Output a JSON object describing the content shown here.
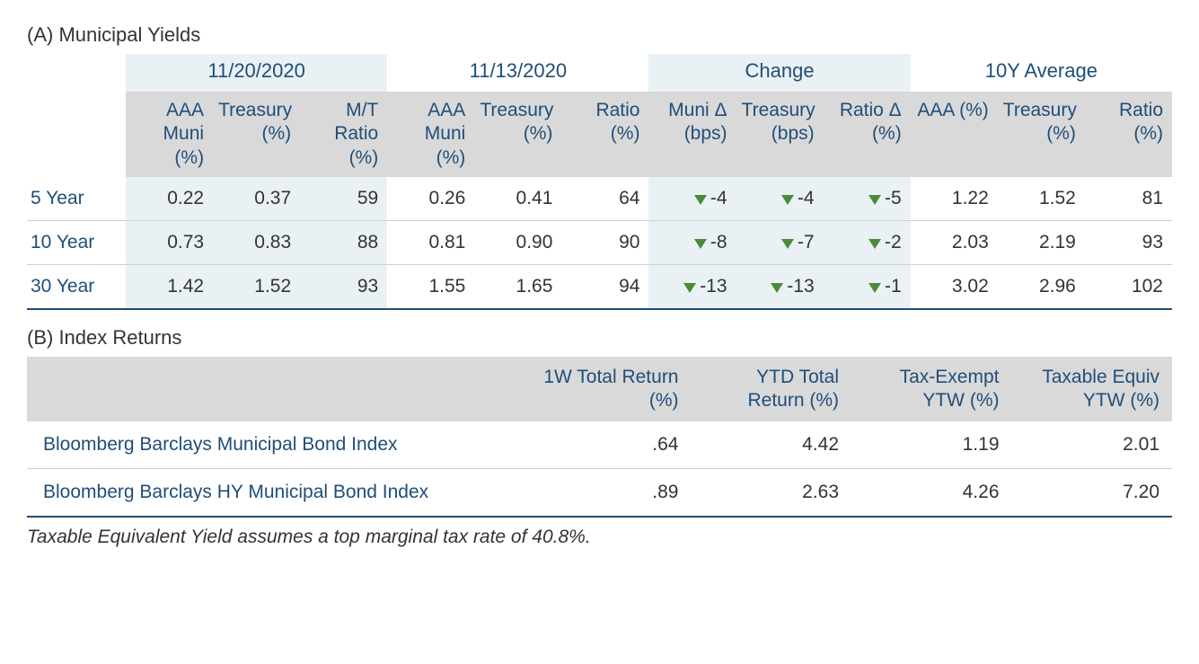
{
  "sectionA": {
    "title": "(A) Municipal Yields",
    "groups": [
      {
        "label": "11/20/2020",
        "span": 3
      },
      {
        "label": "11/13/2020",
        "span": 3
      },
      {
        "label": "Change",
        "span": 3
      },
      {
        "label": "10Y Average",
        "span": 3
      }
    ],
    "columns": [
      "AAA Muni (%)",
      "Treasury (%)",
      "M/T Ratio (%)",
      "AAA Muni (%)",
      "Treasury (%)",
      "Ratio (%)",
      "Muni Δ (bps)",
      "Treasury (bps)",
      "Ratio Δ (%)",
      "AAA (%)",
      "Treasury (%)",
      "Ratio (%)"
    ],
    "shaded_col_indices": [
      0,
      1,
      2,
      6,
      7,
      8
    ],
    "rows": [
      {
        "label": "5 Year",
        "cells": [
          "0.22",
          "0.37",
          "59",
          "0.26",
          "0.41",
          "64",
          {
            "delta": "-4",
            "dir": "down"
          },
          {
            "delta": "-4",
            "dir": "down"
          },
          {
            "delta": "-5",
            "dir": "down"
          },
          "1.22",
          "1.52",
          "81"
        ]
      },
      {
        "label": "10 Year",
        "cells": [
          "0.73",
          "0.83",
          "88",
          "0.81",
          "0.90",
          "90",
          {
            "delta": "-8",
            "dir": "down"
          },
          {
            "delta": "-7",
            "dir": "down"
          },
          {
            "delta": "-2",
            "dir": "down"
          },
          "2.03",
          "2.19",
          "93"
        ]
      },
      {
        "label": "30 Year",
        "cells": [
          "1.42",
          "1.52",
          "93",
          "1.55",
          "1.65",
          "94",
          {
            "delta": "-13",
            "dir": "down"
          },
          {
            "delta": "-13",
            "dir": "down"
          },
          {
            "delta": "-1",
            "dir": "down"
          },
          "3.02",
          "2.96",
          "102"
        ]
      }
    ]
  },
  "sectionB": {
    "title": "(B) Index Returns",
    "columns": [
      "1W Total Return (%)",
      "YTD Total Return (%)",
      "Tax-Exempt YTW (%)",
      "Taxable Equiv YTW (%)"
    ],
    "rows": [
      {
        "label": "Bloomberg Barclays Municipal Bond Index",
        "cells": [
          ".64",
          "4.42",
          "1.19",
          "2.01"
        ]
      },
      {
        "label": "Bloomberg Barclays HY Municipal Bond Index",
        "cells": [
          ".89",
          "2.63",
          "4.26",
          "7.20"
        ]
      }
    ]
  },
  "footnote": "Taxable Equivalent Yield assumes a top marginal tax rate of 40.8%.",
  "colors": {
    "header_text": "#1f4e79",
    "body_text": "#333333",
    "header_bg": "#d9d9d9",
    "shade_bg": "#eaf1f4",
    "delta_green": "#4a8b3a",
    "row_border": "#d0d0d0",
    "bottom_border": "#1f4e79",
    "page_bg": "#ffffff"
  }
}
